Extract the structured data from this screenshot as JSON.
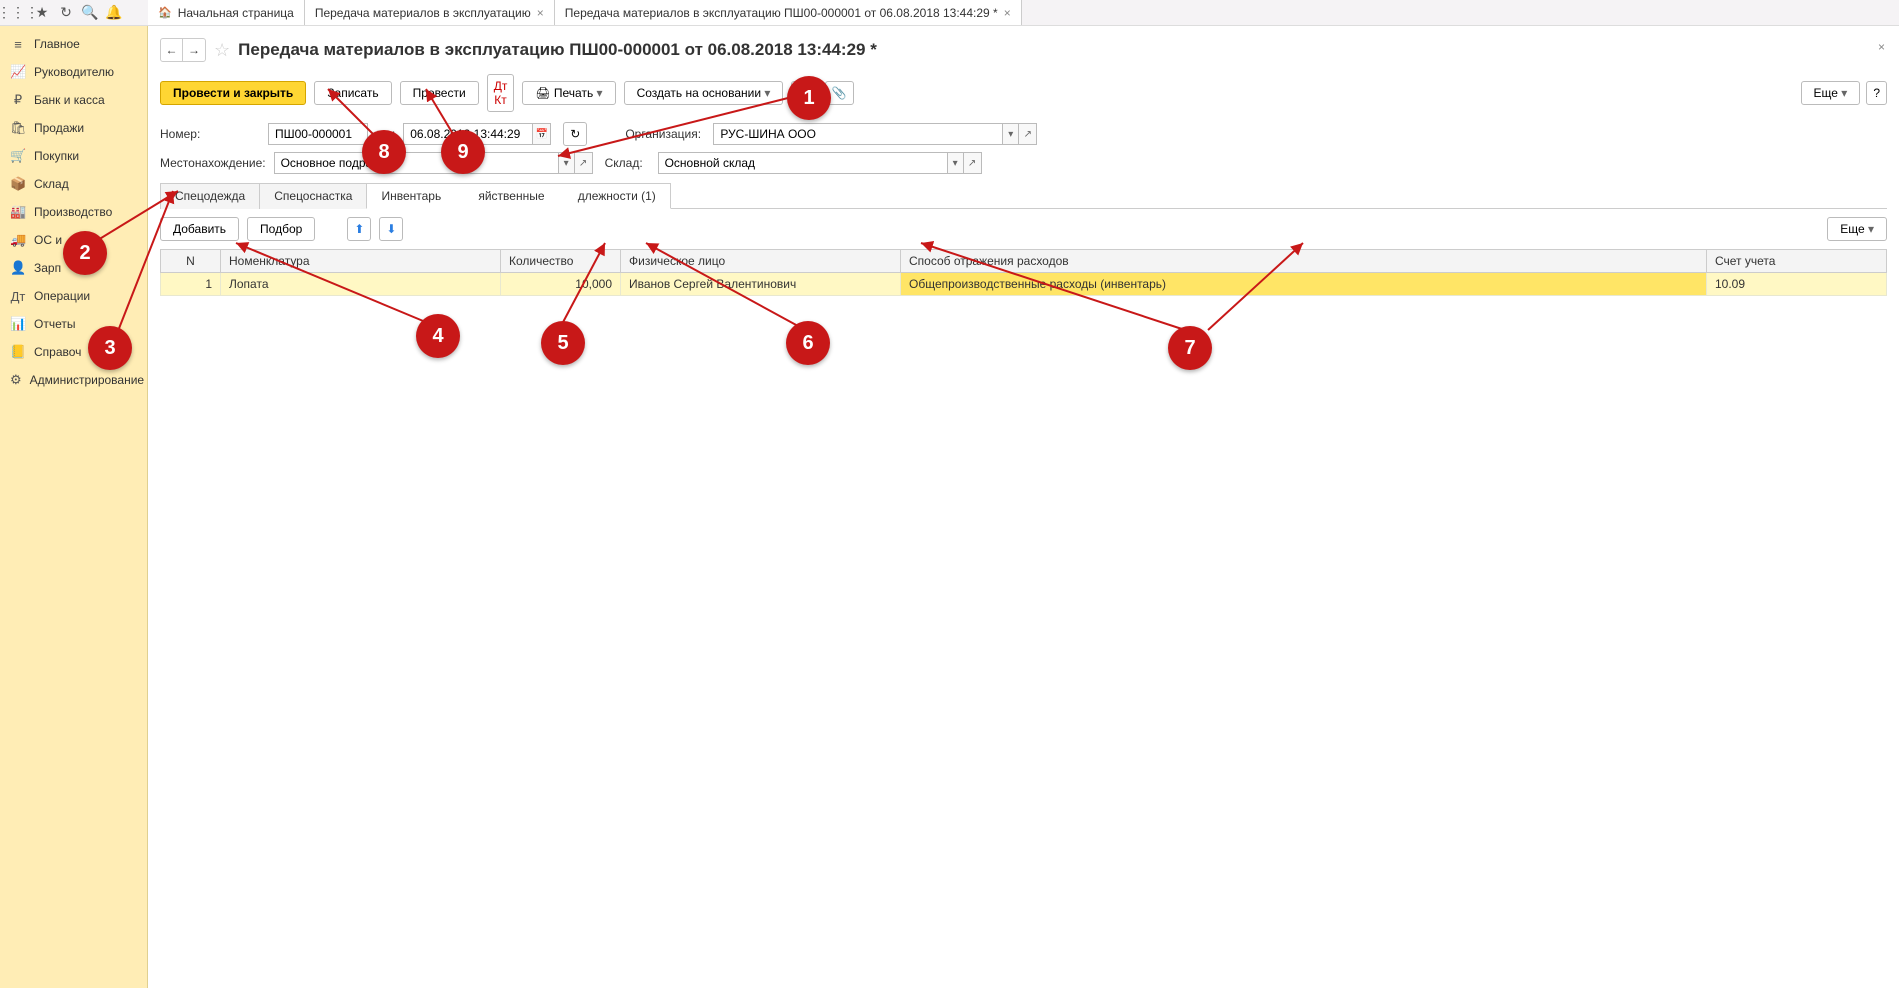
{
  "topTabs": [
    {
      "label": "Начальная страница",
      "closable": false
    },
    {
      "label": "Передача материалов в эксплуатацию",
      "closable": true
    },
    {
      "label": "Передача материалов в эксплуатацию ПШ00-000001 от 06.08.2018 13:44:29 *",
      "closable": true
    }
  ],
  "sidebar": [
    {
      "icon": "≡",
      "label": "Главное"
    },
    {
      "icon": "📈",
      "label": "Руководителю"
    },
    {
      "icon": "₽",
      "label": "Банк и касса"
    },
    {
      "icon": "🛍",
      "label": "Продажи"
    },
    {
      "icon": "🛒",
      "label": "Покупки"
    },
    {
      "icon": "📦",
      "label": "Склад"
    },
    {
      "icon": "🏭",
      "label": "Производство"
    },
    {
      "icon": "🚚",
      "label": "ОС и"
    },
    {
      "icon": "👤",
      "label": "Зарп"
    },
    {
      "icon": "Дт",
      "label": "Операции"
    },
    {
      "icon": "📊",
      "label": "Отчеты"
    },
    {
      "icon": "📒",
      "label": "Справоч"
    },
    {
      "icon": "⚙",
      "label": "Администрирование"
    }
  ],
  "docTitle": "Передача материалов в эксплуатацию ПШ00-000001 от 06.08.2018 13:44:29 *",
  "toolbar": {
    "postClose": "Провести и закрыть",
    "save": "Записать",
    "post": "Провести",
    "print": "Печать",
    "createBased": "Создать на основании",
    "more": "Еще"
  },
  "form": {
    "numberLabel": "Номер:",
    "numberValue": "ПШ00-000001",
    "dateLabel": "от:",
    "dateValue": "06.08.2018 13:44:29",
    "orgLabel": "Организация:",
    "orgValue": "РУС-ШИНА ООО",
    "locLabel": "Местонахождение:",
    "locValue": "Основное подразде",
    "warehouseLabel": "Склад:",
    "warehouseValue": "Основной склад"
  },
  "subTabs": [
    {
      "label": "Спецодежда"
    },
    {
      "label": "Спецоснастка"
    },
    {
      "label": "Инвентарь",
      "trailing": "яйственные",
      "trailing2": "длежности (1)"
    }
  ],
  "tableToolbar": {
    "add": "Добавить",
    "pick": "Подбор",
    "more": "Еще"
  },
  "columns": {
    "n": "N",
    "nom": "Номенклатура",
    "qty": "Количество",
    "person": "Физическое лицо",
    "expense": "Способ отражения расходов",
    "account": "Счет учета"
  },
  "row": {
    "n": "1",
    "nom": "Лопата",
    "qty": "10,000",
    "person": "Иванов Сергей Валентинович",
    "expense": "Общепроизводственные расходы (инвентарь)",
    "account": "10.09"
  },
  "markers": {
    "m1": "1",
    "m2": "2",
    "m3": "3",
    "m4": "4",
    "m5": "5",
    "m6": "6",
    "m7": "7",
    "m8": "8",
    "m9": "9"
  }
}
